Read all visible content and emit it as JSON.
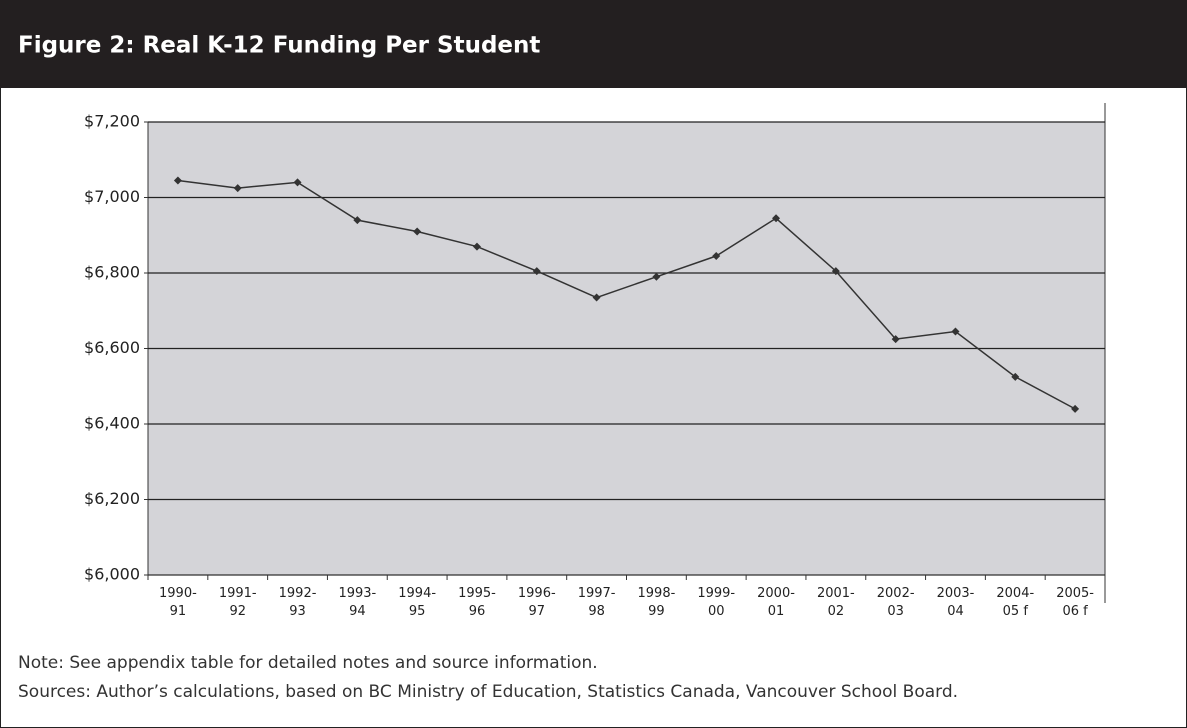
{
  "chart_data": {
    "type": "line",
    "title": "Figure 2: Real K-12 Funding Per Student",
    "categories": [
      "1990-91",
      "1991-92",
      "1992-93",
      "1993-94",
      "1994-95",
      "1995-96",
      "1996-97",
      "1997-98",
      "1998-99",
      "1999-00",
      "2000-01",
      "2001-02",
      "2002-03",
      "2003-04",
      "2004-05 f",
      "2005-06 f"
    ],
    "series": [
      {
        "name": "Real K-12 Funding Per Student",
        "color": "#333333",
        "values": [
          7045,
          7025,
          7040,
          6940,
          6910,
          6870,
          6805,
          6735,
          6790,
          6845,
          6945,
          6805,
          6625,
          6645,
          6525,
          6440
        ]
      }
    ],
    "ylim": [
      6000,
      7200
    ],
    "yticks": [
      {
        "value": 6000,
        "label": "$6,000"
      },
      {
        "value": 6200,
        "label": "$6,200"
      },
      {
        "value": 6400,
        "label": "$6,400"
      },
      {
        "value": 6600,
        "label": "$6,600"
      },
      {
        "value": 6800,
        "label": "$6,800"
      },
      {
        "value": 7000,
        "label": "$7,000"
      },
      {
        "value": 7200,
        "label": "$7,200"
      }
    ],
    "grid": true,
    "notes": [
      "Note: See appendix table for detailed notes and source information.",
      "Sources: Author’s calculations, based on BC Ministry of Education, Statistics Canada, Vancouver School Board."
    ]
  }
}
